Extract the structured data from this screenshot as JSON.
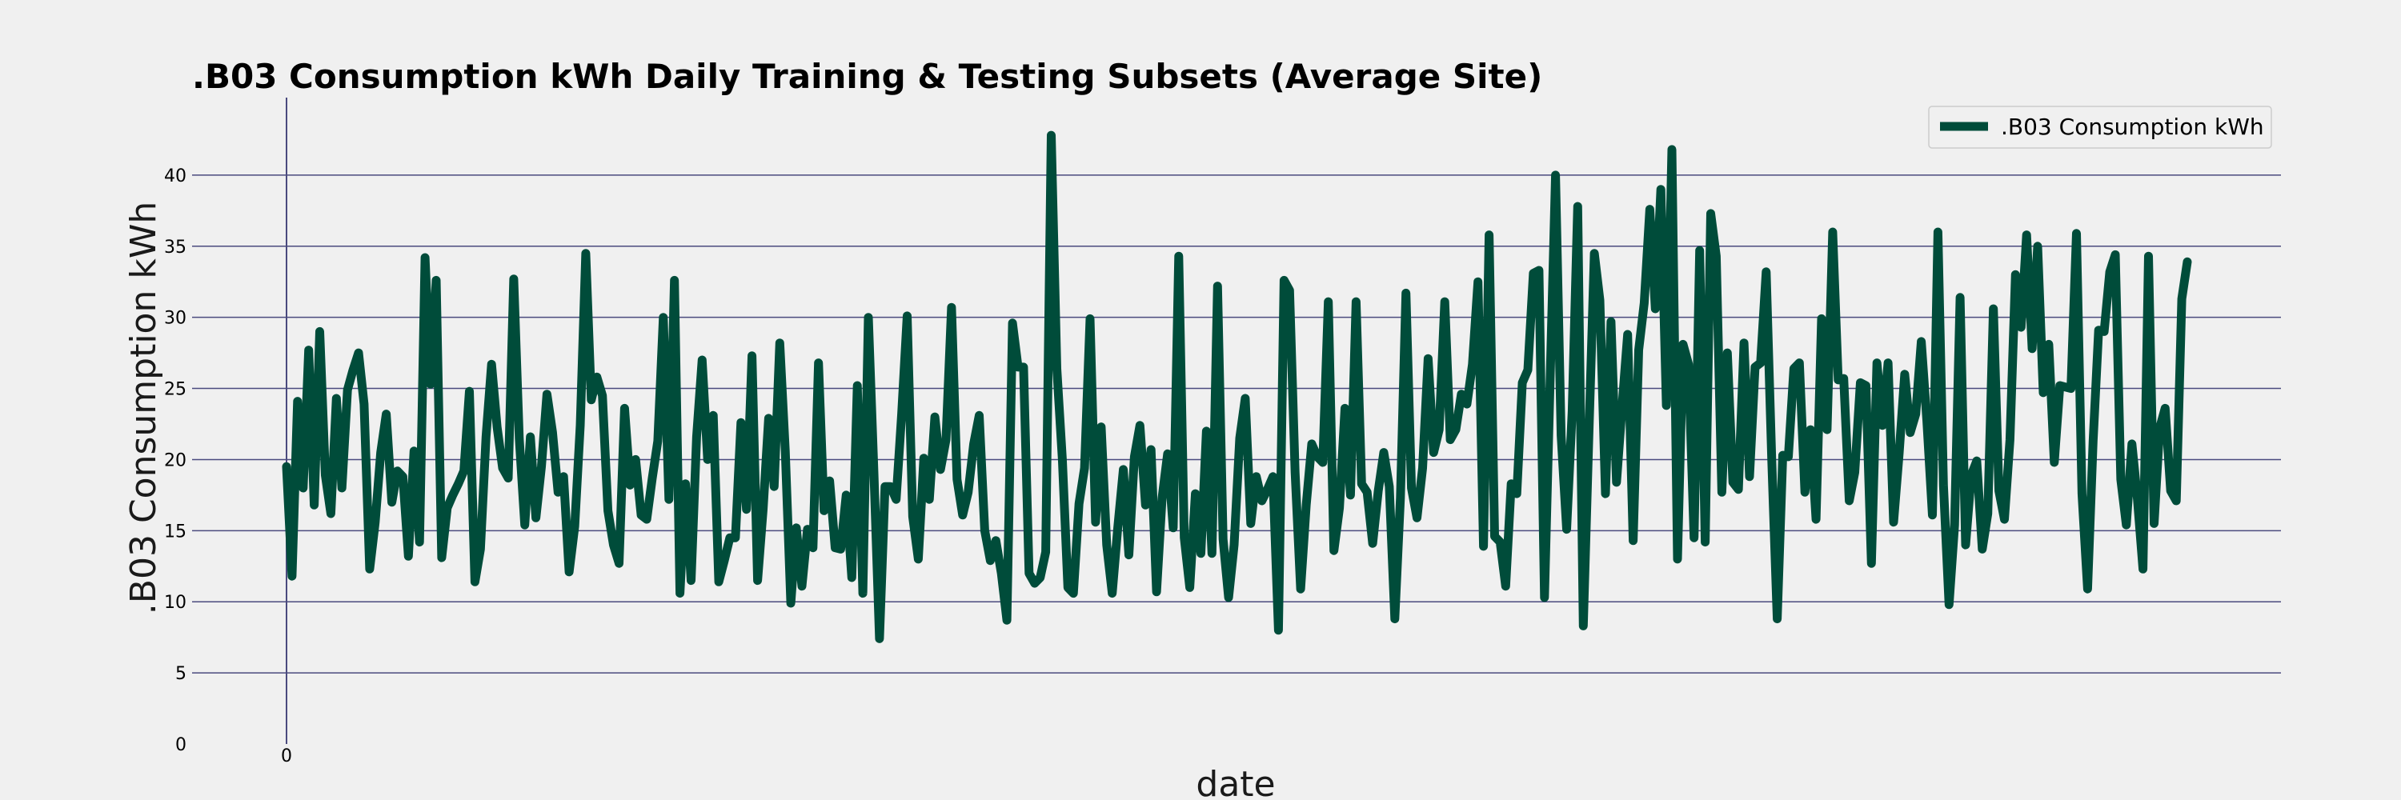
{
  "colors": {
    "background": "#f0f0f0",
    "series": "#004c3a",
    "grid": "#4a4a7e",
    "legend_border": "#cccccc"
  },
  "chart_data": {
    "type": "line",
    "title": ".B03 Consumption kWh Daily Training & Testing Subsets (Average Site)",
    "xlabel": "date",
    "ylabel": ".B03 Consumption kWh",
    "ylim": [
      0,
      45
    ],
    "yticks": [
      0,
      5,
      10,
      15,
      20,
      25,
      30,
      35,
      40
    ],
    "xticks": [
      0
    ],
    "grid": "horizontal",
    "legend_position": "top-right",
    "series": [
      {
        "name": ".B03 Consumption kWh",
        "x_start": 0,
        "values": [
          19.5,
          11.8,
          24.1,
          18.0,
          27.7,
          16.8,
          29.0,
          18.9,
          16.2,
          24.3,
          18.0,
          24.9,
          26.3,
          27.5,
          23.9,
          12.3,
          15.6,
          20.5,
          23.2,
          17.0,
          19.2,
          18.8,
          13.2,
          20.6,
          14.2,
          34.2,
          25.3,
          32.6,
          13.1,
          16.6,
          17.5,
          18.3,
          19.2,
          24.8,
          11.4,
          13.7,
          21.6,
          26.7,
          22.3,
          19.4,
          18.7,
          32.7,
          21.5,
          15.4,
          21.6,
          15.9,
          19.5,
          24.6,
          21.9,
          17.7,
          18.8,
          12.1,
          15.3,
          22.4,
          34.5,
          24.2,
          25.8,
          24.5,
          16.4,
          14.0,
          12.7,
          23.6,
          18.2,
          20.0,
          16.1,
          15.8,
          18.7,
          21.3,
          30.0,
          17.2,
          32.6,
          10.6,
          18.3,
          11.5,
          21.6,
          27.0,
          20.0,
          23.1,
          11.4,
          12.9,
          14.5,
          14.5,
          22.6,
          16.5,
          27.3,
          11.5,
          16.5,
          22.9,
          18.1,
          28.2,
          20.6,
          9.9,
          15.2,
          11.1,
          15.1,
          13.8,
          26.8,
          16.4,
          18.5,
          13.8,
          13.7,
          17.5,
          11.7,
          25.2,
          10.6,
          30.0,
          19.0,
          7.4,
          18.1,
          18.1,
          17.2,
          23.2,
          30.1,
          16.0,
          13.0,
          20.1,
          17.2,
          23.0,
          19.3,
          21.4,
          30.7,
          18.6,
          16.1,
          17.7,
          21.1,
          23.1,
          15.0,
          12.9,
          14.3,
          12.0,
          8.7,
          29.6,
          26.5,
          26.5,
          12.0,
          11.3,
          11.7,
          13.5,
          42.8,
          26.4,
          20.0,
          11.0,
          10.6,
          16.9,
          19.4,
          29.9,
          15.6,
          22.3,
          14.0,
          10.6,
          15.2,
          19.3,
          13.3,
          20.2,
          22.4,
          16.8,
          20.7,
          10.7,
          17.3,
          20.4,
          15.2,
          34.3,
          14.5,
          11.0,
          17.6,
          13.4,
          22.0,
          13.4,
          32.2,
          14.4,
          10.3,
          14.0,
          21.5,
          24.3,
          15.5,
          18.8,
          17.1,
          17.9,
          18.8,
          8.0,
          32.6,
          31.9,
          19.1,
          10.9,
          16.8,
          21.1,
          20.2,
          19.8,
          31.1,
          13.6,
          16.6,
          23.6,
          17.5,
          31.1,
          18.3,
          17.7,
          14.1,
          17.8,
          20.5,
          18.1,
          8.8,
          17.3,
          31.7,
          18.0,
          15.9,
          19.4,
          27.1,
          20.5,
          22.1,
          31.1,
          21.4,
          22.1,
          24.6,
          23.9,
          26.7,
          32.5,
          13.9,
          35.8,
          14.6,
          14.2,
          11.1,
          18.3,
          17.6,
          25.4,
          26.3,
          33.1,
          33.3,
          10.3,
          25.3,
          40.0,
          21.7,
          15.1,
          23.4,
          37.8,
          8.3,
          21.6,
          34.5,
          31.2,
          17.6,
          29.7,
          18.4,
          23.7,
          28.8,
          14.3,
          27.7,
          31.0,
          37.6,
          30.6,
          39.0,
          23.8,
          41.8,
          13.0,
          28.1,
          26.7,
          14.5,
          34.7,
          14.2,
          37.3,
          34.3,
          17.7,
          27.5,
          18.4,
          17.9,
          28.2,
          18.8,
          26.5,
          26.8,
          33.2,
          20.1,
          8.8,
          20.3,
          20.2,
          26.4,
          26.8,
          17.7,
          22.1,
          15.8,
          29.9,
          22.1,
          36.0,
          25.6,
          25.7,
          17.1,
          19.1,
          25.4,
          25.2,
          12.7,
          26.8,
          22.4,
          26.8,
          15.6,
          20.4,
          26.0,
          21.9,
          23.2,
          28.3,
          22.7,
          16.1,
          36.0,
          18.2,
          9.8,
          15.4,
          31.4,
          14.0,
          18.9,
          19.9,
          13.7,
          16.2,
          30.6,
          17.8,
          15.8,
          21.4,
          33.0,
          29.3,
          35.8,
          27.8,
          35.0,
          24.7,
          28.1,
          19.8,
          25.2,
          25.1,
          25.0,
          35.9,
          17.6,
          10.9,
          21.3,
          29.1,
          29.0,
          33.2,
          34.4,
          18.6,
          15.4,
          21.1,
          17.2,
          12.3,
          34.3,
          15.5,
          22.2,
          23.6,
          17.8,
          17.1,
          31.3,
          33.9
        ]
      }
    ]
  }
}
